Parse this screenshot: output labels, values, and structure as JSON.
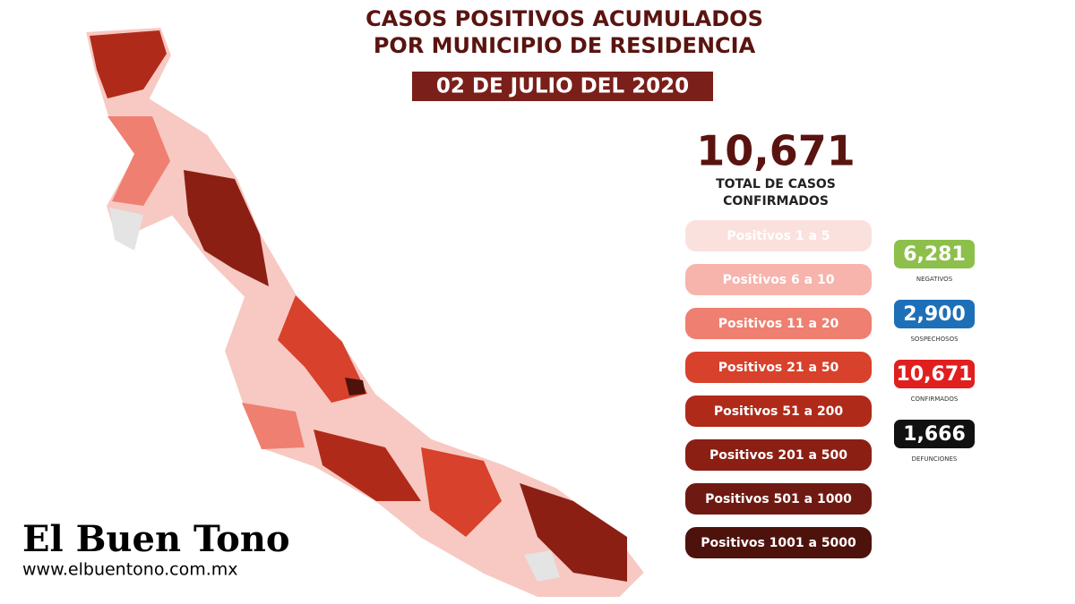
{
  "header": {
    "title_lines": [
      "CASOS POSITIVOS ACUMULADOS",
      "POR MUNICIPIO DE RESIDENCIA"
    ],
    "date": "02 DE JULIO DEL 2020"
  },
  "total": {
    "value": "10,671",
    "label_lines": [
      "TOTAL DE CASOS",
      "CONFIRMADOS"
    ]
  },
  "legend": [
    "Positivos 1 a 5",
    "Positivos 6 a 10",
    "Positivos 11 a 20",
    "Positivos 21 a 50",
    "Positivos 51 a 200",
    "Positivos 201 a 500",
    "Positivos 501 a 1000",
    "Positivos 1001 a 5000"
  ],
  "stats": [
    {
      "value": "6,281",
      "label": "NEGATIVOS"
    },
    {
      "value": "2,900",
      "label": "SOSPECHOSOS"
    },
    {
      "value": "10,671",
      "label": "CONFIRMADOS"
    },
    {
      "value": "1,666",
      "label": "DEFUNCIONES"
    }
  ],
  "brand": {
    "name": "El Buen Tono",
    "url": "www.elbuentono.com.mx"
  }
}
